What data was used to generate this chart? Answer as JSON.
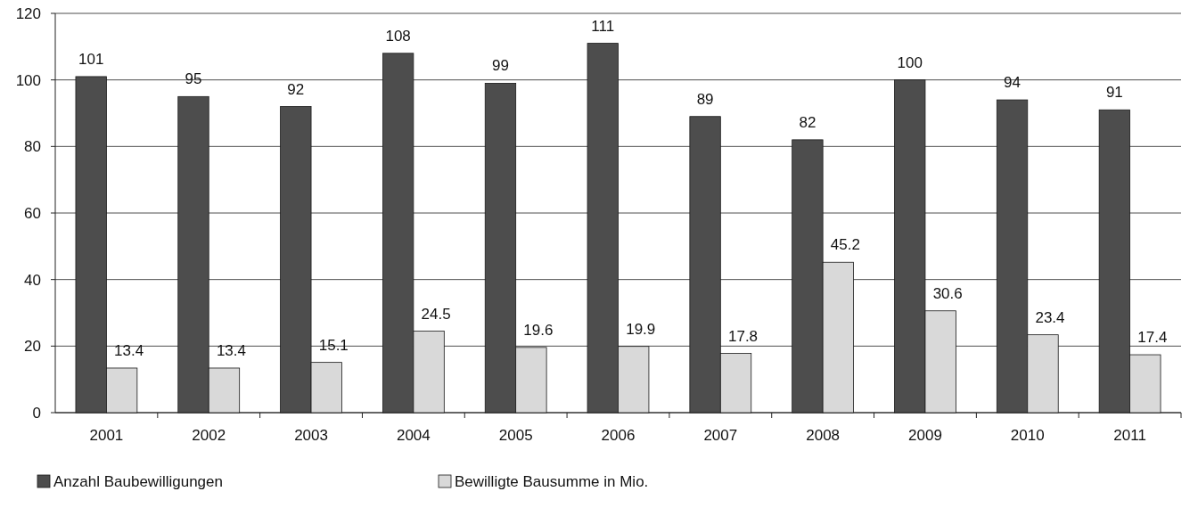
{
  "chart_data": {
    "type": "bar",
    "categories": [
      "2001",
      "2002",
      "2003",
      "2004",
      "2005",
      "2006",
      "2007",
      "2008",
      "2009",
      "2010",
      "2011"
    ],
    "series": [
      {
        "name": "Anzahl Baubewilligungen",
        "color": "#4d4d4d",
        "values": [
          101,
          95,
          92,
          108,
          99,
          111,
          89,
          82,
          100,
          94,
          91
        ]
      },
      {
        "name": "Bewilligte Bausumme in Mio.",
        "color": "#d9d9d9",
        "values": [
          13.4,
          13.4,
          15.1,
          24.5,
          19.6,
          19.9,
          17.8,
          45.2,
          30.6,
          23.4,
          17.4
        ]
      }
    ],
    "ylim": [
      0,
      120
    ],
    "yticks": [
      0,
      20,
      40,
      60,
      80,
      100,
      120
    ],
    "grid": "y",
    "data_labels": true,
    "legend": "bottom"
  }
}
